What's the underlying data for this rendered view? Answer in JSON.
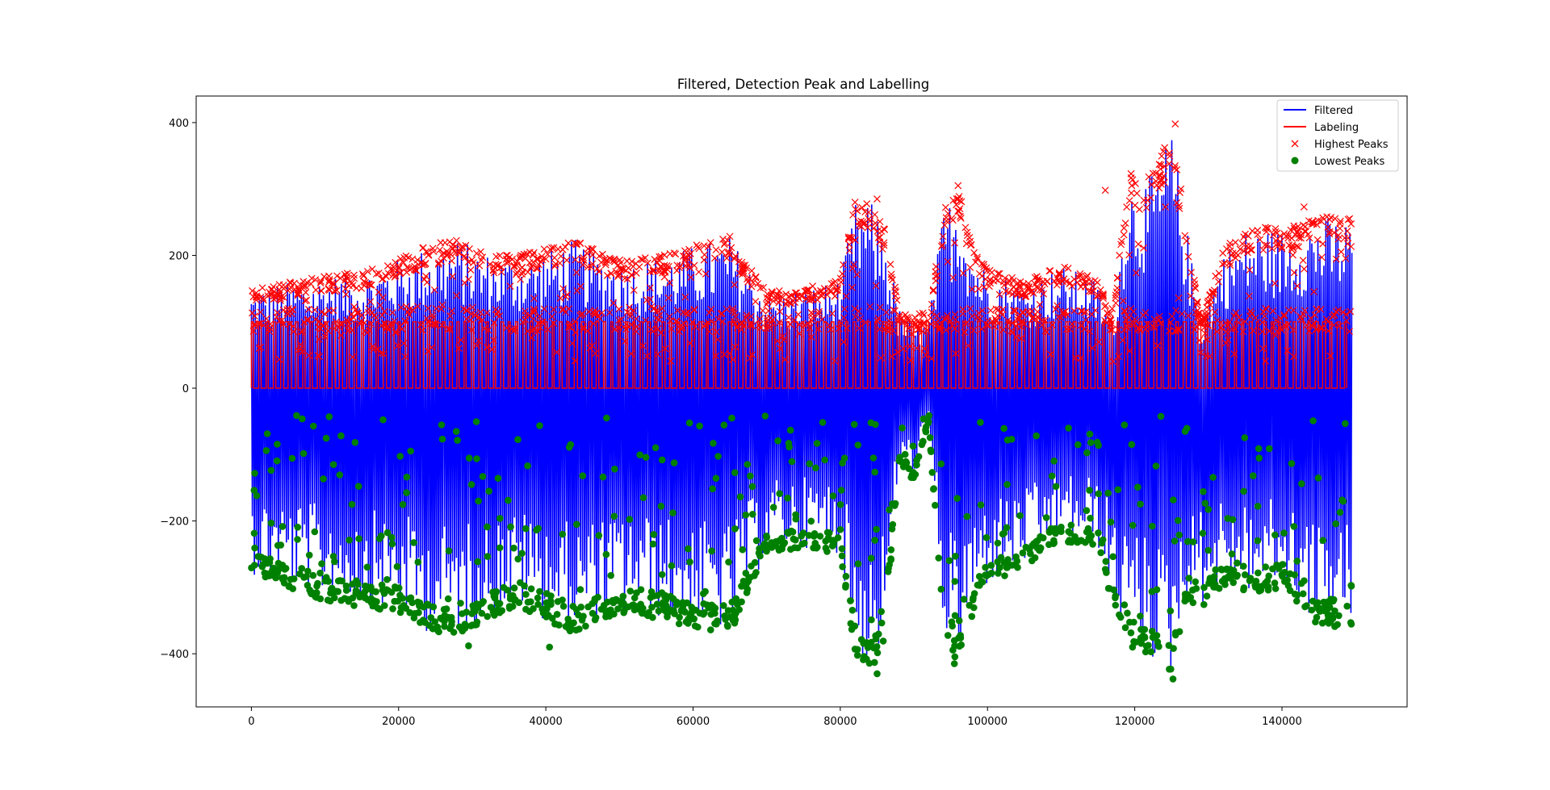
{
  "figure": {
    "background": "#ffffff"
  },
  "chart_data": {
    "type": "line",
    "title": "Filtered, Detection Peak and Labelling",
    "xlabel": "",
    "ylabel": "",
    "xlim": [
      -7500,
      157000
    ],
    "ylim": [
      -480,
      440
    ],
    "x_ticks": [
      0,
      20000,
      40000,
      60000,
      80000,
      100000,
      120000,
      140000
    ],
    "x_tick_labels": [
      "0",
      "20000",
      "40000",
      "60000",
      "80000",
      "100000",
      "120000",
      "140000"
    ],
    "y_ticks": [
      -400,
      -200,
      0,
      200,
      400
    ],
    "y_tick_labels": [
      "−400",
      "−200",
      "0",
      "200",
      "400"
    ],
    "grid": false,
    "legend_position": "top-right",
    "legend": [
      {
        "label": "Filtered",
        "kind": "line",
        "color": "#0000ff"
      },
      {
        "label": "Labeling",
        "kind": "line",
        "color": "#ff0000"
      },
      {
        "label": "Highest Peaks",
        "kind": "x-marker",
        "color": "#ff0000"
      },
      {
        "label": "Lowest Peaks",
        "kind": "circle-marker",
        "color": "#008000"
      }
    ],
    "series": [
      {
        "name": "Filtered",
        "color": "#0000ff",
        "envelope": {
          "x": [
            0,
            5000,
            10000,
            15000,
            20000,
            24000,
            28000,
            32000,
            36000,
            40000,
            44000,
            48000,
            52000,
            56000,
            60000,
            65000,
            70000,
            75000,
            80000,
            82000,
            84000,
            86000,
            88000,
            90000,
            92000,
            94000,
            96000,
            98000,
            100000,
            105000,
            110000,
            115000,
            117000,
            119000,
            121000,
            123000,
            125000,
            127000,
            129000,
            132000,
            136000,
            140000,
            145000,
            149500
          ],
          "upper": [
            150,
            160,
            170,
            175,
            195,
            215,
            225,
            205,
            200,
            210,
            225,
            200,
            195,
            200,
            215,
            230,
            145,
            150,
            165,
            280,
            285,
            240,
            120,
            100,
            100,
            270,
            305,
            215,
            180,
            160,
            185,
            165,
            100,
            320,
            310,
            330,
            395,
            250,
            100,
            210,
            245,
            240,
            260,
            255
          ],
          "lower": [
            -280,
            -300,
            -320,
            -330,
            -340,
            -370,
            -370,
            -350,
            -330,
            -350,
            -370,
            -350,
            -340,
            -350,
            -360,
            -370,
            -250,
            -240,
            -250,
            -400,
            -430,
            -380,
            -110,
            -140,
            -50,
            -370,
            -415,
            -340,
            -300,
            -270,
            -230,
            -240,
            -330,
            -380,
            -390,
            -420,
            -440,
            -320,
            -330,
            -300,
            -310,
            -300,
            -360,
            -360
          ]
        }
      },
      {
        "name": "Labeling",
        "color": "#ff0000",
        "levels": [
          0,
          100
        ]
      },
      {
        "name": "Highest Peaks",
        "color": "#ff0000",
        "marker": "x",
        "highlights": [
          {
            "x": 82000,
            "y": 280
          },
          {
            "x": 85000,
            "y": 285
          },
          {
            "x": 96000,
            "y": 305
          },
          {
            "x": 116000,
            "y": 298
          },
          {
            "x": 119500,
            "y": 323
          },
          {
            "x": 123500,
            "y": 330
          },
          {
            "x": 125500,
            "y": 398
          },
          {
            "x": 143000,
            "y": 273
          }
        ]
      },
      {
        "name": "Lowest Peaks",
        "color": "#008000",
        "marker": "o",
        "highlights": [
          {
            "x": 85000,
            "y": -430
          },
          {
            "x": 82000,
            "y": -393
          },
          {
            "x": 95500,
            "y": -415
          },
          {
            "x": 125200,
            "y": -438
          },
          {
            "x": 40500,
            "y": -390
          },
          {
            "x": 29500,
            "y": -388
          },
          {
            "x": 119700,
            "y": -390
          }
        ]
      }
    ]
  }
}
